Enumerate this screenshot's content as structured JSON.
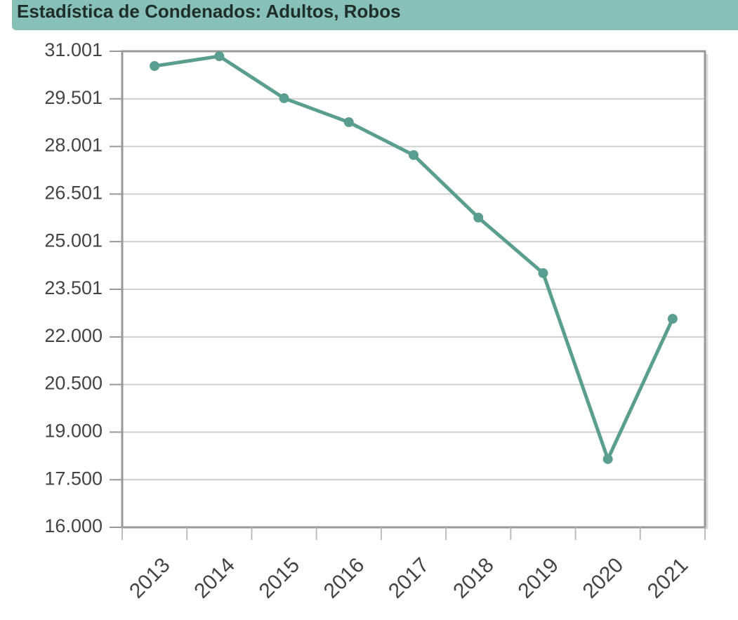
{
  "chart_data": {
    "type": "line",
    "title": "Estadística de Condenados: Adultos, Robos",
    "categories": [
      "2013",
      "2014",
      "2015",
      "2016",
      "2017",
      "2018",
      "2019",
      "2020",
      "2021"
    ],
    "series": [
      {
        "name": "Robos",
        "color": "#5a9e90",
        "values": [
          30535,
          30845,
          29520,
          28765,
          27730,
          25760,
          24010,
          18150,
          22570
        ]
      }
    ],
    "ylim": [
      16000,
      31001
    ],
    "yticks": [
      {
        "value": 16000,
        "label": "16.000"
      },
      {
        "value": 17500,
        "label": "17.500"
      },
      {
        "value": 19000,
        "label": "19.000"
      },
      {
        "value": 20500,
        "label": "20.500"
      },
      {
        "value": 22000,
        "label": "22.000"
      },
      {
        "value": 23501,
        "label": "23.501"
      },
      {
        "value": 25001,
        "label": "25.001"
      },
      {
        "value": 26501,
        "label": "26.501"
      },
      {
        "value": 28001,
        "label": "28.001"
      },
      {
        "value": 29501,
        "label": "29.501"
      },
      {
        "value": 31001,
        "label": "31.001"
      }
    ],
    "grid": true
  }
}
